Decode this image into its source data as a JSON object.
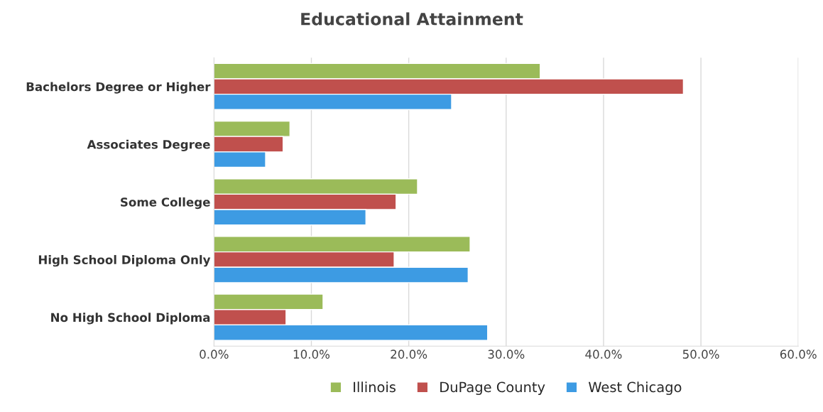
{
  "chart_data": {
    "type": "bar",
    "orientation": "horizontal",
    "title": "Educational Attainment",
    "categories": [
      "Bachelors Degree or Higher",
      "Associates Degree",
      "Some College",
      "High School Diploma Only",
      "No High School Diploma"
    ],
    "series": [
      {
        "name": "Illinois",
        "color": "#9bbb59",
        "values": [
          33.5,
          7.8,
          20.9,
          26.3,
          11.2
        ]
      },
      {
        "name": "DuPage County",
        "color": "#c0504d",
        "values": [
          48.2,
          7.1,
          18.7,
          18.5,
          7.4
        ]
      },
      {
        "name": "West Chicago",
        "color": "#3d9be3",
        "values": [
          24.4,
          5.3,
          15.6,
          26.1,
          28.1
        ]
      }
    ],
    "xlim": [
      0,
      60
    ],
    "xticks": [
      {
        "value": 0,
        "label": "0.0%"
      },
      {
        "value": 10,
        "label": "10.0%"
      },
      {
        "value": 20,
        "label": "20.0%"
      },
      {
        "value": 30,
        "label": "30.0%"
      },
      {
        "value": 40,
        "label": "40.0%"
      },
      {
        "value": 50,
        "label": "50.0%"
      },
      {
        "value": 60,
        "label": "60.0%"
      }
    ],
    "grid": "x",
    "legend": "bottom"
  }
}
